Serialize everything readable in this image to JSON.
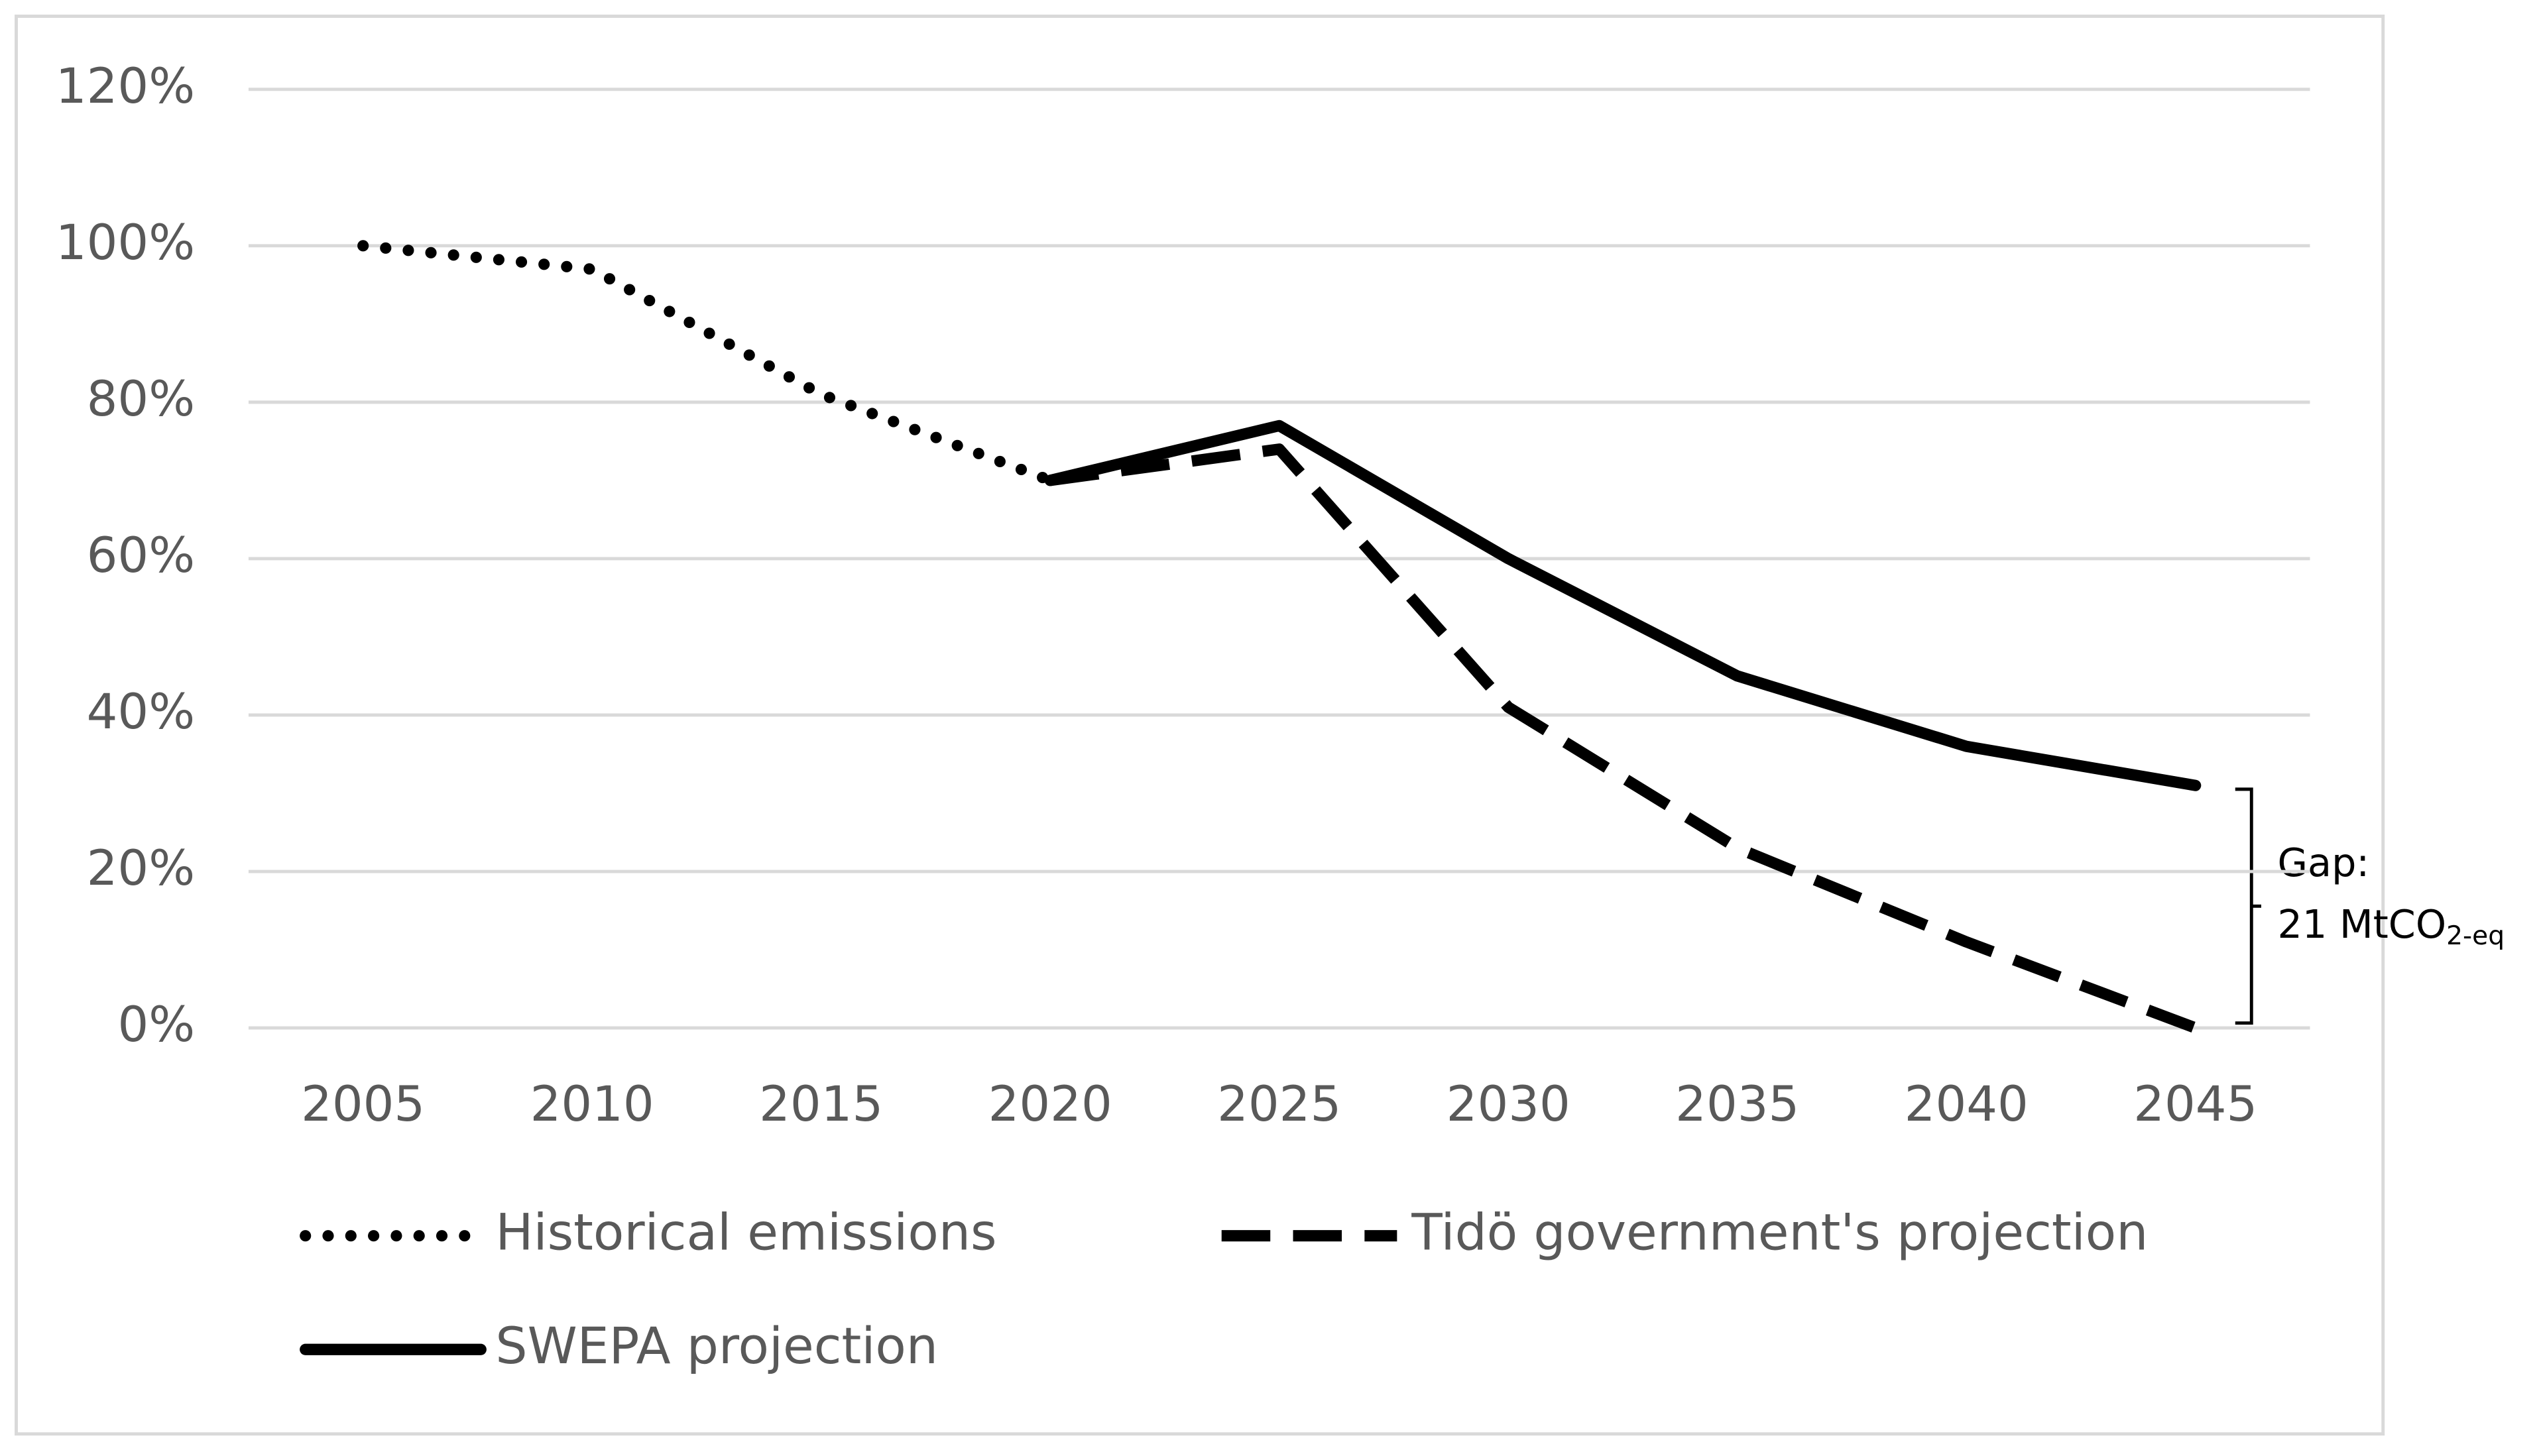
{
  "chart_data": {
    "type": "line",
    "categories": [
      "2005",
      "2010",
      "2015",
      "2020",
      "2025",
      "2030",
      "2035",
      "2040",
      "2045"
    ],
    "series": [
      {
        "name": "Historical emissions",
        "color": "#000000",
        "style": "dotted",
        "values": [
          100,
          97,
          81,
          70,
          null,
          null,
          null,
          null,
          null
        ]
      },
      {
        "name": "Tidö government's projection",
        "color": "#000000",
        "style": "dashed",
        "values": [
          null,
          null,
          null,
          70,
          74,
          41,
          23,
          11,
          0
        ]
      },
      {
        "name": "SWEPA projection",
        "color": "#000000",
        "style": "solid",
        "values": [
          null,
          null,
          null,
          70,
          77,
          60,
          45,
          36,
          31
        ]
      }
    ],
    "ylim": [
      0,
      120
    ],
    "yticks": [
      {
        "value": 0,
        "label": "0%"
      },
      {
        "value": 20,
        "label": "20%"
      },
      {
        "value": 40,
        "label": "40%"
      },
      {
        "value": 60,
        "label": "60%"
      },
      {
        "value": 80,
        "label": "80%"
      },
      {
        "value": 100,
        "label": "100%"
      },
      {
        "value": 120,
        "label": "120%"
      }
    ],
    "grid": true,
    "legend": "bottom",
    "annotation": {
      "line1": "Gap:",
      "line2": "21 MtCO",
      "line2_sub": "2-eq"
    }
  }
}
